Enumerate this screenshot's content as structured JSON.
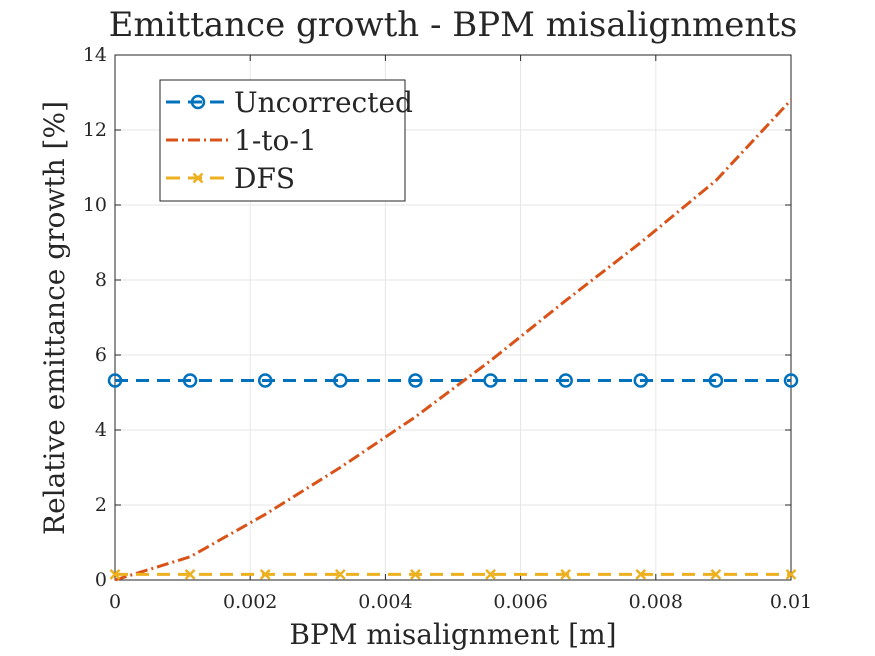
{
  "chart_data": {
    "type": "line",
    "title": "Emittance growth - BPM misalignments",
    "xlabel": "BPM misalignment [m]",
    "ylabel": "Relative emittance growth [%]",
    "xlim": [
      0,
      0.01
    ],
    "ylim": [
      0,
      14
    ],
    "xticks": [
      0,
      0.002,
      0.004,
      0.006,
      0.008,
      0.01
    ],
    "xtick_labels": [
      "0",
      "0.002",
      "0.004",
      "0.006",
      "0.008",
      "0.01"
    ],
    "yticks": [
      0,
      2,
      4,
      6,
      8,
      10,
      12,
      14
    ],
    "ytick_labels": [
      "0",
      "2",
      "4",
      "6",
      "8",
      "10",
      "12",
      "14"
    ],
    "grid": true,
    "legend_position": "top-left",
    "x": [
      0,
      0.001111,
      0.002222,
      0.003333,
      0.004444,
      0.005556,
      0.006667,
      0.007778,
      0.008889,
      0.01
    ],
    "series": [
      {
        "name": "Uncorrected",
        "values": [
          5.32,
          5.32,
          5.32,
          5.32,
          5.32,
          5.32,
          5.32,
          5.32,
          5.32,
          5.32
        ],
        "color": "#0072BD",
        "line_style": "dashed",
        "marker": "circle"
      },
      {
        "name": "1-to-1",
        "values": [
          0.0,
          0.62,
          1.75,
          3.0,
          4.35,
          5.85,
          7.45,
          9.0,
          10.65,
          12.8
        ],
        "color": "#D95319",
        "line_style": "dash-dot",
        "marker": "none"
      },
      {
        "name": "DFS",
        "values": [
          0.15,
          0.15,
          0.15,
          0.15,
          0.15,
          0.15,
          0.15,
          0.15,
          0.15,
          0.15
        ],
        "color": "#EDB120",
        "line_style": "dashed",
        "marker": "x"
      }
    ]
  }
}
